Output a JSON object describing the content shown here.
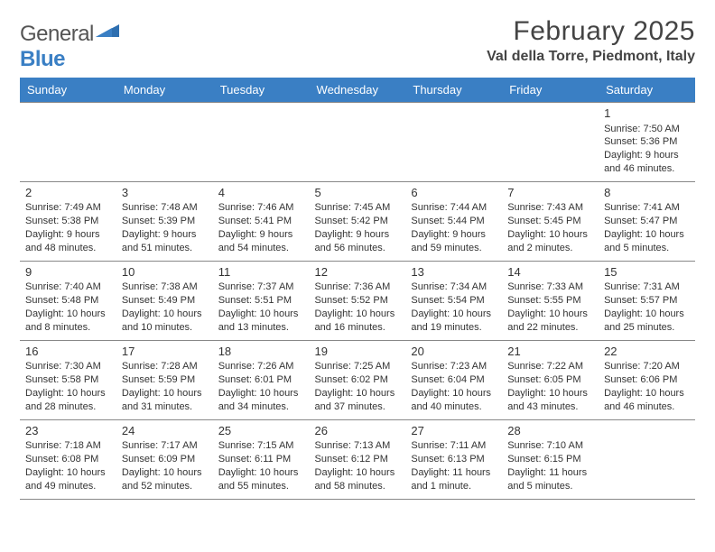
{
  "brand": {
    "part1": "General",
    "part2": "Blue"
  },
  "title": "February 2025",
  "location": "Val della Torre, Piedmont, Italy",
  "colors": {
    "header_bg": "#3a7fc4",
    "header_text": "#ffffff",
    "grid_border": "#888888",
    "text": "#333333",
    "page_bg": "#ffffff",
    "brand_gray": "#555555",
    "brand_blue": "#3a7fc4"
  },
  "fonts": {
    "title_size": 30,
    "location_size": 16,
    "dayheader_size": 13,
    "body_size": 11
  },
  "day_headers": [
    "Sunday",
    "Monday",
    "Tuesday",
    "Wednesday",
    "Thursday",
    "Friday",
    "Saturday"
  ],
  "weeks": [
    [
      null,
      null,
      null,
      null,
      null,
      null,
      {
        "n": "1",
        "sunrise": "Sunrise: 7:50 AM",
        "sunset": "Sunset: 5:36 PM",
        "daylight": "Daylight: 9 hours and 46 minutes."
      }
    ],
    [
      {
        "n": "2",
        "sunrise": "Sunrise: 7:49 AM",
        "sunset": "Sunset: 5:38 PM",
        "daylight": "Daylight: 9 hours and 48 minutes."
      },
      {
        "n": "3",
        "sunrise": "Sunrise: 7:48 AM",
        "sunset": "Sunset: 5:39 PM",
        "daylight": "Daylight: 9 hours and 51 minutes."
      },
      {
        "n": "4",
        "sunrise": "Sunrise: 7:46 AM",
        "sunset": "Sunset: 5:41 PM",
        "daylight": "Daylight: 9 hours and 54 minutes."
      },
      {
        "n": "5",
        "sunrise": "Sunrise: 7:45 AM",
        "sunset": "Sunset: 5:42 PM",
        "daylight": "Daylight: 9 hours and 56 minutes."
      },
      {
        "n": "6",
        "sunrise": "Sunrise: 7:44 AM",
        "sunset": "Sunset: 5:44 PM",
        "daylight": "Daylight: 9 hours and 59 minutes."
      },
      {
        "n": "7",
        "sunrise": "Sunrise: 7:43 AM",
        "sunset": "Sunset: 5:45 PM",
        "daylight": "Daylight: 10 hours and 2 minutes."
      },
      {
        "n": "8",
        "sunrise": "Sunrise: 7:41 AM",
        "sunset": "Sunset: 5:47 PM",
        "daylight": "Daylight: 10 hours and 5 minutes."
      }
    ],
    [
      {
        "n": "9",
        "sunrise": "Sunrise: 7:40 AM",
        "sunset": "Sunset: 5:48 PM",
        "daylight": "Daylight: 10 hours and 8 minutes."
      },
      {
        "n": "10",
        "sunrise": "Sunrise: 7:38 AM",
        "sunset": "Sunset: 5:49 PM",
        "daylight": "Daylight: 10 hours and 10 minutes."
      },
      {
        "n": "11",
        "sunrise": "Sunrise: 7:37 AM",
        "sunset": "Sunset: 5:51 PM",
        "daylight": "Daylight: 10 hours and 13 minutes."
      },
      {
        "n": "12",
        "sunrise": "Sunrise: 7:36 AM",
        "sunset": "Sunset: 5:52 PM",
        "daylight": "Daylight: 10 hours and 16 minutes."
      },
      {
        "n": "13",
        "sunrise": "Sunrise: 7:34 AM",
        "sunset": "Sunset: 5:54 PM",
        "daylight": "Daylight: 10 hours and 19 minutes."
      },
      {
        "n": "14",
        "sunrise": "Sunrise: 7:33 AM",
        "sunset": "Sunset: 5:55 PM",
        "daylight": "Daylight: 10 hours and 22 minutes."
      },
      {
        "n": "15",
        "sunrise": "Sunrise: 7:31 AM",
        "sunset": "Sunset: 5:57 PM",
        "daylight": "Daylight: 10 hours and 25 minutes."
      }
    ],
    [
      {
        "n": "16",
        "sunrise": "Sunrise: 7:30 AM",
        "sunset": "Sunset: 5:58 PM",
        "daylight": "Daylight: 10 hours and 28 minutes."
      },
      {
        "n": "17",
        "sunrise": "Sunrise: 7:28 AM",
        "sunset": "Sunset: 5:59 PM",
        "daylight": "Daylight: 10 hours and 31 minutes."
      },
      {
        "n": "18",
        "sunrise": "Sunrise: 7:26 AM",
        "sunset": "Sunset: 6:01 PM",
        "daylight": "Daylight: 10 hours and 34 minutes."
      },
      {
        "n": "19",
        "sunrise": "Sunrise: 7:25 AM",
        "sunset": "Sunset: 6:02 PM",
        "daylight": "Daylight: 10 hours and 37 minutes."
      },
      {
        "n": "20",
        "sunrise": "Sunrise: 7:23 AM",
        "sunset": "Sunset: 6:04 PM",
        "daylight": "Daylight: 10 hours and 40 minutes."
      },
      {
        "n": "21",
        "sunrise": "Sunrise: 7:22 AM",
        "sunset": "Sunset: 6:05 PM",
        "daylight": "Daylight: 10 hours and 43 minutes."
      },
      {
        "n": "22",
        "sunrise": "Sunrise: 7:20 AM",
        "sunset": "Sunset: 6:06 PM",
        "daylight": "Daylight: 10 hours and 46 minutes."
      }
    ],
    [
      {
        "n": "23",
        "sunrise": "Sunrise: 7:18 AM",
        "sunset": "Sunset: 6:08 PM",
        "daylight": "Daylight: 10 hours and 49 minutes."
      },
      {
        "n": "24",
        "sunrise": "Sunrise: 7:17 AM",
        "sunset": "Sunset: 6:09 PM",
        "daylight": "Daylight: 10 hours and 52 minutes."
      },
      {
        "n": "25",
        "sunrise": "Sunrise: 7:15 AM",
        "sunset": "Sunset: 6:11 PM",
        "daylight": "Daylight: 10 hours and 55 minutes."
      },
      {
        "n": "26",
        "sunrise": "Sunrise: 7:13 AM",
        "sunset": "Sunset: 6:12 PM",
        "daylight": "Daylight: 10 hours and 58 minutes."
      },
      {
        "n": "27",
        "sunrise": "Sunrise: 7:11 AM",
        "sunset": "Sunset: 6:13 PM",
        "daylight": "Daylight: 11 hours and 1 minute."
      },
      {
        "n": "28",
        "sunrise": "Sunrise: 7:10 AM",
        "sunset": "Sunset: 6:15 PM",
        "daylight": "Daylight: 11 hours and 5 minutes."
      },
      null
    ]
  ]
}
